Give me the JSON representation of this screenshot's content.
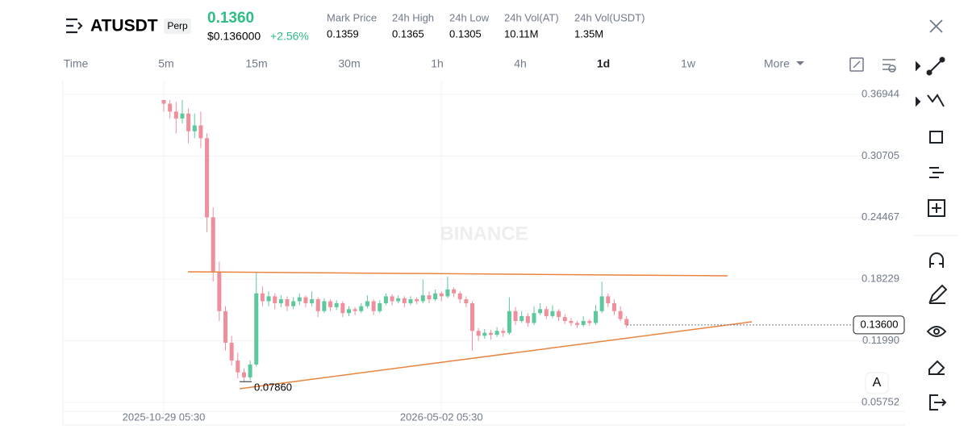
{
  "header": {
    "symbol": "ATUSDT",
    "badge": "Perp",
    "price": "0.1360",
    "usd_price": "$0.136000",
    "change": "+2.56%",
    "stats": [
      {
        "label": "Mark Price",
        "value": "0.1359"
      },
      {
        "label": "24h High",
        "value": "0.1365"
      },
      {
        "label": "24h Low",
        "value": "0.1305"
      },
      {
        "label": "24h Vol(AT)",
        "value": "10.11M"
      },
      {
        "label": "24h Vol(USDT)",
        "value": "1.35M"
      }
    ]
  },
  "toolbar": {
    "intervals": [
      "Time",
      "5m",
      "15m",
      "30m",
      "1h",
      "4h",
      "1d",
      "1w"
    ],
    "active": "1d",
    "more": "More"
  },
  "auto_button": "A",
  "chart_data": {
    "type": "candlestick",
    "watermark": "BINANCE",
    "up_color": "#5cc99d",
    "down_color": "#ee8f9b",
    "ylim": [
      0.0347,
      0.3833
    ],
    "yticks": [
      0.36944,
      0.30705,
      0.24467,
      0.18229,
      {
        "value": 0.1199,
        "label": "0.11990"
      },
      0.05752
    ],
    "current_price": {
      "value": 0.136,
      "label": "0.13600"
    },
    "low_annotation": {
      "value": 0.0786,
      "label": "0.07860"
    },
    "categories": [
      "2025-10-29 05:30",
      null,
      null,
      null,
      null,
      null,
      null,
      null,
      null,
      null,
      null,
      null,
      null,
      null,
      null,
      null,
      null,
      null,
      null,
      null,
      null,
      null,
      null,
      null,
      null,
      null,
      null,
      null,
      null,
      null,
      null,
      null,
      null,
      null,
      null,
      null,
      null,
      null,
      null,
      null,
      null,
      null,
      null,
      null,
      null,
      "2026-05-02 05:30",
      null,
      null,
      null,
      null,
      null,
      null,
      null,
      null,
      null,
      null,
      null,
      null,
      null,
      null,
      null,
      null,
      null,
      null,
      null,
      null,
      null,
      null,
      null,
      null,
      null,
      null,
      null,
      null,
      null,
      null
    ],
    "candles": [
      [
        0.368,
        0.372,
        0.352,
        0.36
      ],
      [
        0.36,
        0.369,
        0.345,
        0.352
      ],
      [
        0.352,
        0.362,
        0.33,
        0.345
      ],
      [
        0.345,
        0.368,
        0.34,
        0.35
      ],
      [
        0.35,
        0.355,
        0.32,
        0.332
      ],
      [
        0.332,
        0.35,
        0.325,
        0.338
      ],
      [
        0.338,
        0.352,
        0.315,
        0.325
      ],
      [
        0.325,
        0.33,
        0.23,
        0.245
      ],
      [
        0.245,
        0.255,
        0.18,
        0.19
      ],
      [
        0.19,
        0.2,
        0.14,
        0.15
      ],
      [
        0.15,
        0.155,
        0.11,
        0.118
      ],
      [
        0.118,
        0.125,
        0.095,
        0.1
      ],
      [
        0.1,
        0.108,
        0.082,
        0.088
      ],
      [
        0.088,
        0.092,
        0.0786,
        0.083
      ],
      [
        0.083,
        0.1,
        0.08,
        0.096
      ],
      [
        0.096,
        0.19,
        0.094,
        0.168
      ],
      [
        0.168,
        0.175,
        0.155,
        0.16
      ],
      [
        0.16,
        0.17,
        0.155,
        0.165
      ],
      [
        0.165,
        0.168,
        0.152,
        0.158
      ],
      [
        0.158,
        0.166,
        0.154,
        0.162
      ],
      [
        0.162,
        0.165,
        0.15,
        0.155
      ],
      [
        0.155,
        0.164,
        0.152,
        0.16
      ],
      [
        0.16,
        0.168,
        0.156,
        0.164
      ],
      [
        0.164,
        0.166,
        0.154,
        0.158
      ],
      [
        0.158,
        0.17,
        0.155,
        0.162
      ],
      [
        0.162,
        0.164,
        0.144,
        0.15
      ],
      [
        0.15,
        0.163,
        0.148,
        0.16
      ],
      [
        0.16,
        0.162,
        0.15,
        0.154
      ],
      [
        0.154,
        0.161,
        0.151,
        0.158
      ],
      [
        0.158,
        0.16,
        0.144,
        0.148
      ],
      [
        0.148,
        0.155,
        0.145,
        0.152
      ],
      [
        0.152,
        0.154,
        0.146,
        0.15
      ],
      [
        0.15,
        0.158,
        0.148,
        0.155
      ],
      [
        0.155,
        0.166,
        0.153,
        0.16
      ],
      [
        0.16,
        0.162,
        0.146,
        0.15
      ],
      [
        0.15,
        0.161,
        0.148,
        0.158
      ],
      [
        0.158,
        0.168,
        0.156,
        0.165
      ],
      [
        0.165,
        0.167,
        0.156,
        0.16
      ],
      [
        0.16,
        0.166,
        0.158,
        0.163
      ],
      [
        0.163,
        0.165,
        0.154,
        0.158
      ],
      [
        0.158,
        0.165,
        0.156,
        0.162
      ],
      [
        0.162,
        0.164,
        0.157,
        0.16
      ],
      [
        0.16,
        0.182,
        0.158,
        0.166
      ],
      [
        0.166,
        0.17,
        0.158,
        0.162
      ],
      [
        0.162,
        0.172,
        0.16,
        0.168
      ],
      [
        0.168,
        0.17,
        0.16,
        0.165
      ],
      [
        0.165,
        0.185,
        0.163,
        0.172
      ],
      [
        0.172,
        0.174,
        0.164,
        0.168
      ],
      [
        0.168,
        0.17,
        0.158,
        0.162
      ],
      [
        0.162,
        0.165,
        0.154,
        0.158
      ],
      [
        0.158,
        0.16,
        0.11,
        0.13
      ],
      [
        0.13,
        0.133,
        0.12,
        0.125
      ],
      [
        0.125,
        0.132,
        0.122,
        0.128
      ],
      [
        0.128,
        0.131,
        0.121,
        0.126
      ],
      [
        0.126,
        0.134,
        0.124,
        0.13
      ],
      [
        0.13,
        0.133,
        0.124,
        0.128
      ],
      [
        0.128,
        0.164,
        0.126,
        0.15
      ],
      [
        0.15,
        0.154,
        0.136,
        0.14
      ],
      [
        0.14,
        0.15,
        0.138,
        0.145
      ],
      [
        0.145,
        0.148,
        0.134,
        0.138
      ],
      [
        0.138,
        0.155,
        0.136,
        0.148
      ],
      [
        0.148,
        0.158,
        0.146,
        0.152
      ],
      [
        0.152,
        0.155,
        0.142,
        0.145
      ],
      [
        0.145,
        0.156,
        0.143,
        0.15
      ],
      [
        0.15,
        0.152,
        0.14,
        0.144
      ],
      [
        0.144,
        0.147,
        0.137,
        0.14
      ],
      [
        0.14,
        0.143,
        0.135,
        0.138
      ],
      [
        0.138,
        0.14,
        0.133,
        0.136
      ],
      [
        0.136,
        0.145,
        0.134,
        0.14
      ],
      [
        0.14,
        0.142,
        0.135,
        0.138
      ],
      [
        0.138,
        0.156,
        0.136,
        0.15
      ],
      [
        0.15,
        0.18,
        0.148,
        0.165
      ],
      [
        0.165,
        0.168,
        0.154,
        0.158
      ],
      [
        0.158,
        0.162,
        0.146,
        0.15
      ],
      [
        0.15,
        0.155,
        0.14,
        0.142
      ],
      [
        0.142,
        0.145,
        0.133,
        0.136
      ]
    ]
  }
}
